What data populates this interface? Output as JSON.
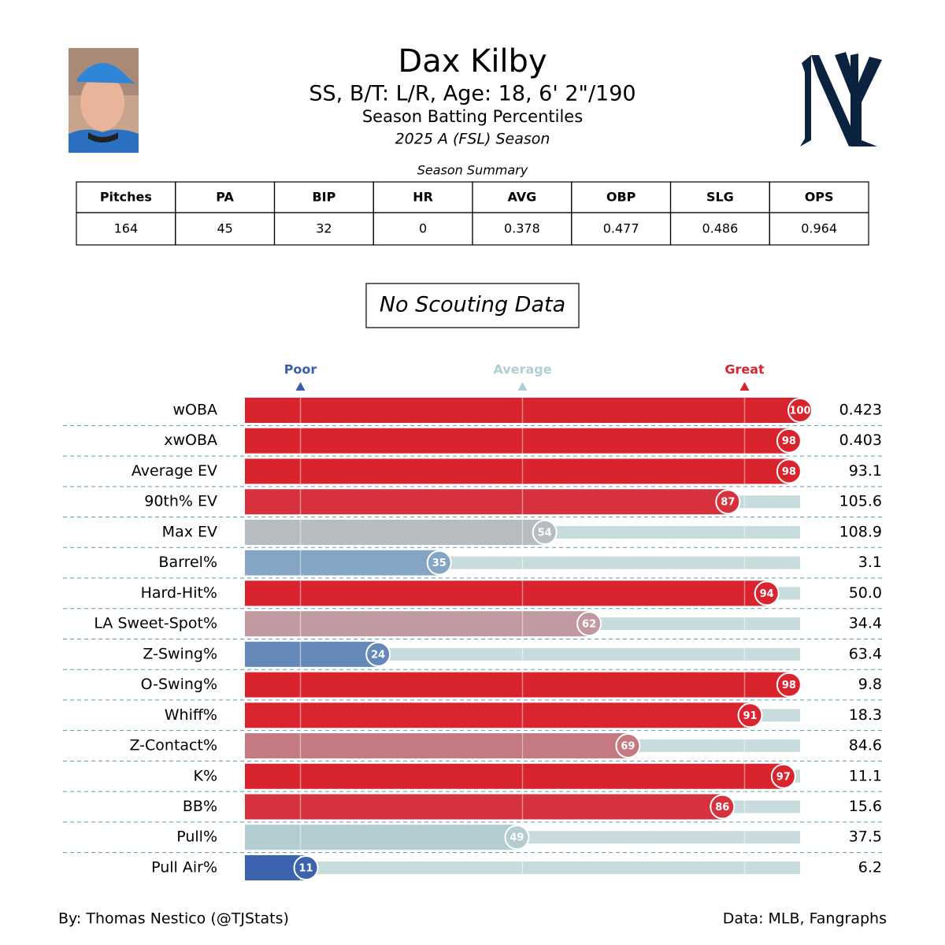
{
  "header": {
    "title": "Dax Kilby",
    "subtitle": "SS, B/T: L/R, Age: 18, 6' 2\"/190",
    "heading": "Season Batting Percentiles",
    "season": "2025 A (FSL) Season"
  },
  "summary": {
    "title": "Season Summary",
    "columns": [
      "Pitches",
      "PA",
      "BIP",
      "HR",
      "AVG",
      "OBP",
      "SLG",
      "OPS"
    ],
    "rows": [
      [
        164,
        45,
        32,
        0,
        0.378,
        0.477,
        0.486,
        0.964
      ]
    ]
  },
  "note": "No Scouting Data",
  "chart_data": {
    "type": "bar",
    "orientation": "horizontal",
    "xlim": [
      0,
      100
    ],
    "categories": [
      "wOBA",
      "xwOBA",
      "Average EV",
      "90th% EV",
      "Max EV",
      "Barrel%",
      "Hard-Hit%",
      "LA Sweet-Spot%",
      "Z-Swing%",
      "O-Swing%",
      "Whiff%",
      "Z-Contact%",
      "K%",
      "BB%",
      "Pull%",
      "Pull Air%"
    ],
    "values": [
      100,
      98,
      98,
      87,
      54,
      35,
      94,
      62,
      24,
      98,
      91,
      69,
      97,
      86,
      49,
      11
    ],
    "colors": [
      "#d9232d",
      "#d9232d",
      "#d9232d",
      "#d6313c",
      "#b7bcc1",
      "#85a5c4",
      "#d92430",
      "#c09aa0",
      "#6488b8",
      "#d9232d",
      "#da2530",
      "#c47a80",
      "#d9232d",
      "#d6323d",
      "#b3cdd1",
      "#3b63ae"
    ],
    "stats": [
      "0.423",
      "0.403",
      "93.1",
      "105.6",
      "108.9",
      "3.1",
      "50.0",
      "34.4",
      "63.4",
      "9.8",
      "18.3",
      "84.6",
      "11.1",
      "15.6",
      "37.5",
      "6.2"
    ],
    "track_color": "#c8dcdd",
    "markers": [
      {
        "label": "Poor",
        "value": 10,
        "color": "#3a5ea8"
      },
      {
        "label": "Average",
        "value": 50,
        "color": "#b3cdd4"
      },
      {
        "label": "Great",
        "value": 90,
        "color": "#d42530"
      }
    ]
  },
  "footer": {
    "left": "By: Thomas Nestico (@TJStats)",
    "right": "Data: MLB, Fangraphs"
  }
}
